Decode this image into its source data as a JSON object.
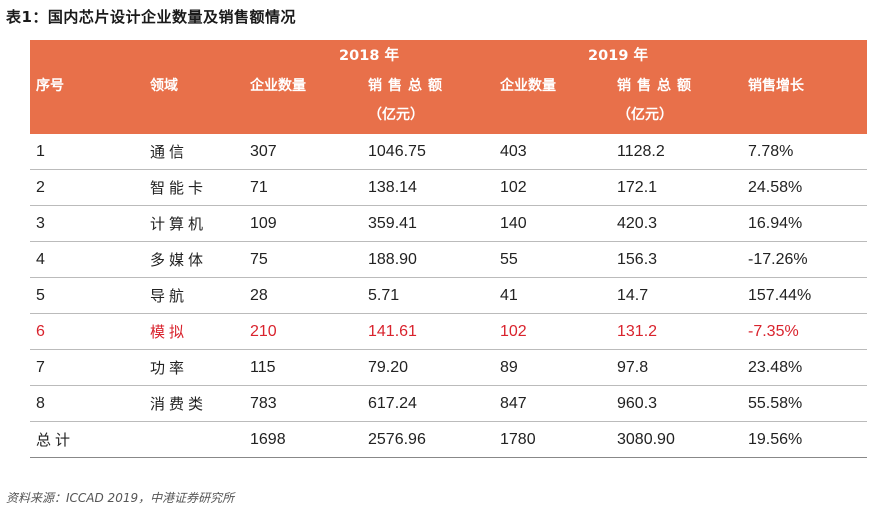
{
  "title": "表1：国内芯片设计企业数量及销售额情况",
  "header": {
    "year_2018": "2018 年",
    "year_2019": "2019 年",
    "col_index": "序号",
    "col_field": "领域",
    "col_count_2018": "企业数量",
    "col_sales_2018": "销售总额",
    "col_sales_unit_2018": "（亿元）",
    "col_count_2019": "企业数量",
    "col_sales_2019": "销售总额",
    "col_sales_unit_2019": "（亿元）",
    "col_growth": "销售增长"
  },
  "rows": [
    {
      "index": "1",
      "field": "通信",
      "count_2018": "307",
      "sales_2018": "1046.75",
      "count_2019": "403",
      "sales_2019": "1128.2",
      "growth": "7.78%"
    },
    {
      "index": "2",
      "field": "智能卡",
      "count_2018": "71",
      "sales_2018": "138.14",
      "count_2019": "102",
      "sales_2019": "172.1",
      "growth": "24.58%"
    },
    {
      "index": "3",
      "field": "计算机",
      "count_2018": "109",
      "sales_2018": "359.41",
      "count_2019": "140",
      "sales_2019": "420.3",
      "growth": "16.94%"
    },
    {
      "index": "4",
      "field": "多媒体",
      "count_2018": "75",
      "sales_2018": "188.90",
      "count_2019": "55",
      "sales_2019": "156.3",
      "growth": "-17.26%"
    },
    {
      "index": "5",
      "field": "导航",
      "count_2018": "28",
      "sales_2018": "5.71",
      "count_2019": "41",
      "sales_2019": "14.7",
      "growth": "157.44%"
    },
    {
      "index": "6",
      "field": "模拟",
      "count_2018": "210",
      "sales_2018": "141.61",
      "count_2019": "102",
      "sales_2019": "131.2",
      "growth": "-7.35%"
    },
    {
      "index": "7",
      "field": "功率",
      "count_2018": "115",
      "sales_2018": "79.20",
      "count_2019": "89",
      "sales_2019": "97.8",
      "growth": "23.48%"
    },
    {
      "index": "8",
      "field": "消费类",
      "count_2018": "783",
      "sales_2018": "617.24",
      "count_2019": "847",
      "sales_2019": "960.3",
      "growth": "55.58%"
    }
  ],
  "total": {
    "label": "总计",
    "count_2018": "1698",
    "sales_2018": "2576.96",
    "count_2019": "1780",
    "sales_2019": "3080.90",
    "growth": "19.56%"
  },
  "source": "资料来源：ICCAD 2019，中港证券研究所",
  "colors": {
    "header_bg": "#e8704a",
    "highlight_text": "#d9232d"
  }
}
